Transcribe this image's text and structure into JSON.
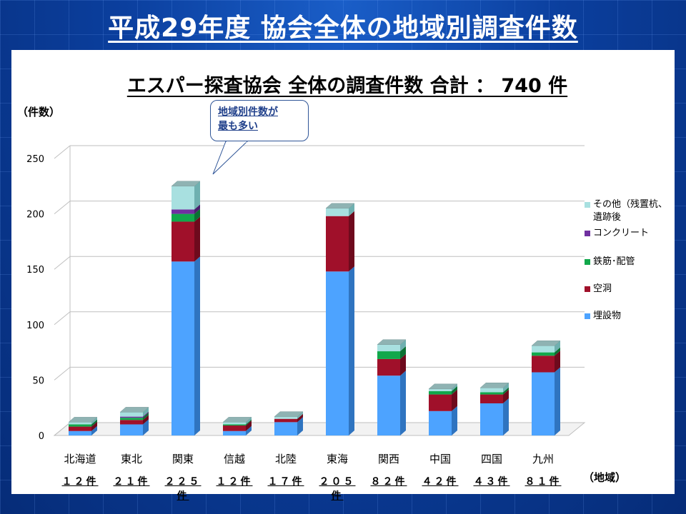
{
  "slide_title": "平成29年度 協会全体の地域別調査件数",
  "chart_data": {
    "type": "bar",
    "stacked": true,
    "title": "エスパー探査協会 全体の調査件数 合計 ： 740 件",
    "ylabel": "（件数）",
    "xlabel": "（地域）",
    "ylim": [
      0,
      250
    ],
    "yticks": [
      0,
      50,
      100,
      150,
      200,
      250
    ],
    "categories": [
      "北海道",
      "東北",
      "関東",
      "信越",
      "北陸",
      "東海",
      "関西",
      "中国",
      "四国",
      "九州"
    ],
    "count_labels": [
      "１２件",
      "２１件",
      "２２５件",
      "１２件",
      "１７件",
      "２０５件",
      "８２件",
      "４２件",
      "４３件",
      "８１件"
    ],
    "series": [
      {
        "name": "埋設物",
        "color": "#4da3ff",
        "side": "#2f74c0",
        "values": [
          4,
          10,
          157,
          4,
          12,
          148,
          54,
          22,
          29,
          57
        ]
      },
      {
        "name": "空洞",
        "color": "#a0102a",
        "side": "#6e0a1d",
        "values": [
          4,
          4,
          36,
          5,
          3,
          50,
          15,
          15,
          8,
          15
        ]
      },
      {
        "name": "鉄筋･配管",
        "color": "#11a84b",
        "side": "#0b7033",
        "values": [
          2,
          2,
          7,
          1,
          0,
          0,
          7,
          3,
          2,
          3
        ]
      },
      {
        "name": "コンクリート",
        "color": "#7030a0",
        "side": "#4b1f6d",
        "values": [
          0,
          1,
          4,
          0,
          0,
          0,
          0,
          0,
          0,
          0
        ]
      },
      {
        "name": "その他（残置杭、遺跡後",
        "color": "#a8e0e0",
        "side": "#6fb0b0",
        "values": [
          2,
          4,
          21,
          2,
          2,
          7,
          6,
          2,
          4,
          6
        ]
      }
    ],
    "grid": true,
    "legend": "right"
  },
  "callout": {
    "line1": "地域別件数が",
    "line2": "最も多い"
  }
}
